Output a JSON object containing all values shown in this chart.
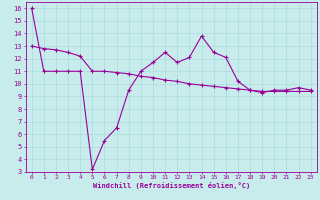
{
  "xlabel": "Windchill (Refroidissement éolien,°C)",
  "xlim": [
    -0.5,
    23.5
  ],
  "ylim": [
    3,
    16.5
  ],
  "yticks": [
    3,
    4,
    5,
    6,
    7,
    8,
    9,
    10,
    11,
    12,
    13,
    14,
    15,
    16
  ],
  "xticks": [
    0,
    1,
    2,
    3,
    4,
    5,
    6,
    7,
    8,
    9,
    10,
    11,
    12,
    13,
    14,
    15,
    16,
    17,
    18,
    19,
    20,
    21,
    22,
    23
  ],
  "bg_color": "#c8ecec",
  "line_color": "#990099",
  "grid_color": "#aadddd",
  "line1_x": [
    0,
    1,
    2,
    3,
    4,
    5,
    6,
    7,
    8,
    9,
    10,
    11,
    12,
    13,
    14,
    15,
    16,
    17,
    18,
    19,
    20,
    21,
    22,
    23
  ],
  "line1_y": [
    16.0,
    11.0,
    11.0,
    11.0,
    11.0,
    3.2,
    5.5,
    6.5,
    9.5,
    11.0,
    11.7,
    12.5,
    11.7,
    12.1,
    13.8,
    12.5,
    12.1,
    10.2,
    9.5,
    9.3,
    9.5,
    9.5,
    9.7,
    9.5
  ],
  "line2_x": [
    0,
    1,
    2,
    3,
    4,
    5,
    6,
    7,
    8,
    9,
    10,
    11,
    12,
    13,
    14,
    15,
    16,
    17,
    18,
    19,
    20,
    21,
    22,
    23
  ],
  "line2_y": [
    13.0,
    12.8,
    12.7,
    12.5,
    12.2,
    11.0,
    11.0,
    10.9,
    10.8,
    10.6,
    10.5,
    10.3,
    10.2,
    10.0,
    9.9,
    9.8,
    9.7,
    9.6,
    9.5,
    9.4,
    9.4,
    9.4,
    9.4,
    9.4
  ]
}
